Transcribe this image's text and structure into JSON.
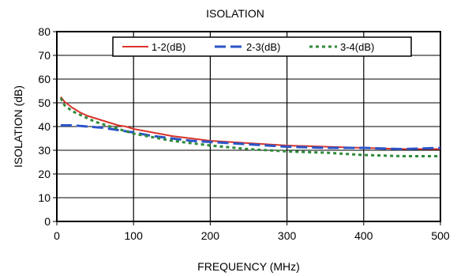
{
  "chart_data": {
    "type": "line",
    "title": "ISOLATION",
    "xlabel": "FREQUENCY (MHz)",
    "ylabel": "ISOLATION (dB)",
    "xlim": [
      0,
      500
    ],
    "ylim": [
      0,
      80
    ],
    "xticks": [
      0,
      100,
      200,
      300,
      400,
      500
    ],
    "yticks": [
      0,
      10,
      20,
      30,
      40,
      50,
      60,
      70,
      80
    ],
    "grid": "vertical lines at x ticks; horizontal lines at y ticks",
    "legend_position": "top-center inside plot",
    "series": [
      {
        "name": "1-2(dB)",
        "color": "#d9342b",
        "style": "solid",
        "x": [
          5,
          10,
          20,
          30,
          40,
          50,
          60,
          70,
          80,
          90,
          100,
          125,
          150,
          175,
          200,
          250,
          300,
          350,
          400,
          450,
          500
        ],
        "y": [
          52.5,
          50.5,
          48,
          46,
          44.5,
          43.5,
          42.5,
          41.5,
          40.5,
          40,
          39,
          37.5,
          36,
          35,
          34,
          33,
          32,
          31.5,
          31,
          30.5,
          30.5
        ]
      },
      {
        "name": "2-3(dB)",
        "color": "#2a55c8",
        "style": "long-dash",
        "x": [
          5,
          20,
          40,
          60,
          80,
          100,
          125,
          150,
          175,
          200,
          250,
          300,
          350,
          400,
          450,
          500
        ],
        "y": [
          40.5,
          40.5,
          40,
          39.5,
          38.5,
          37.5,
          36,
          35,
          34,
          33.5,
          32.5,
          31.5,
          31,
          31,
          30.5,
          31
        ]
      },
      {
        "name": "3-4(dB)",
        "color": "#2e8a3a",
        "style": "dotted",
        "x": [
          5,
          10,
          20,
          30,
          40,
          50,
          60,
          70,
          80,
          90,
          100,
          125,
          150,
          175,
          200,
          250,
          300,
          350,
          400,
          450,
          500
        ],
        "y": [
          52,
          49,
          46.5,
          45,
          43.5,
          42,
          41,
          40,
          39,
          38,
          37,
          35.5,
          34,
          33,
          32,
          30.5,
          29.5,
          29,
          28,
          27.5,
          27.5
        ]
      }
    ]
  }
}
